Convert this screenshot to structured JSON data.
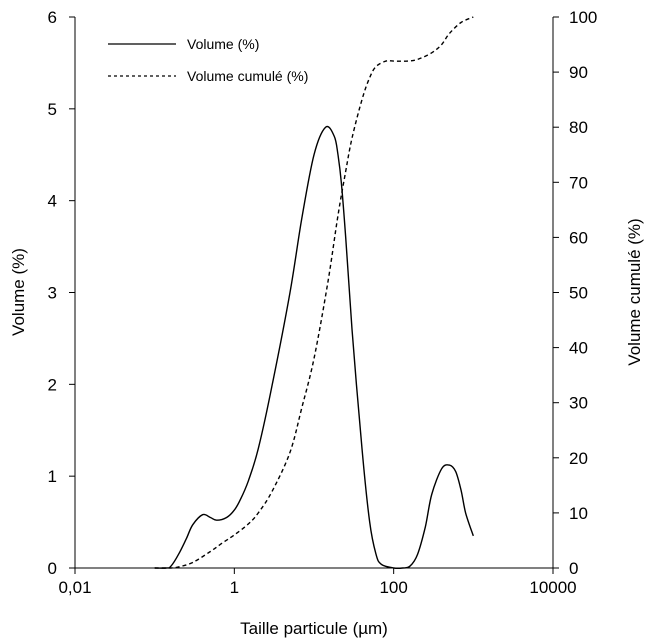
{
  "chart_data": {
    "type": "line",
    "xlabel": "Taille particule (µm)",
    "ylabel_left": "Volume (%)",
    "ylabel_right": "Volume cumulé (%)",
    "x_scale": "log",
    "xlim": [
      0.01,
      10000
    ],
    "ylim_left": [
      0,
      6
    ],
    "ylim_right": [
      0,
      100
    ],
    "x_ticks": [
      {
        "value": 0.01,
        "label": "0,01"
      },
      {
        "value": 1,
        "label": "1"
      },
      {
        "value": 100,
        "label": "100"
      },
      {
        "value": 10000,
        "label": "10000"
      }
    ],
    "y_left_ticks": [
      {
        "value": 0,
        "label": "0"
      },
      {
        "value": 1,
        "label": "1"
      },
      {
        "value": 2,
        "label": "2"
      },
      {
        "value": 3,
        "label": "3"
      },
      {
        "value": 4,
        "label": "4"
      },
      {
        "value": 5,
        "label": "5"
      },
      {
        "value": 6,
        "label": "6"
      }
    ],
    "y_right_ticks": [
      {
        "value": 0,
        "label": "0"
      },
      {
        "value": 10,
        "label": "10"
      },
      {
        "value": 20,
        "label": "20"
      },
      {
        "value": 30,
        "label": "30"
      },
      {
        "value": 40,
        "label": "40"
      },
      {
        "value": 50,
        "label": "50"
      },
      {
        "value": 60,
        "label": "60"
      },
      {
        "value": 70,
        "label": "70"
      },
      {
        "value": 80,
        "label": "80"
      },
      {
        "value": 90,
        "label": "90"
      },
      {
        "value": 100,
        "label": "100"
      }
    ],
    "grid": false,
    "legend_position": "top-left",
    "series": [
      {
        "name": "Volume (%)",
        "axis": "left",
        "style": "solid",
        "color": "#000000",
        "x": [
          0.1,
          0.14,
          0.16,
          0.2,
          0.25,
          0.3,
          0.4,
          0.5,
          0.6,
          0.8,
          1.0,
          1.2,
          1.5,
          2,
          3,
          5,
          7,
          10,
          14,
          18,
          20,
          22,
          25,
          30,
          40,
          50,
          60,
          70,
          100,
          130,
          160,
          200,
          250,
          300,
          400,
          500,
          600,
          700,
          800,
          1000
        ],
        "y": [
          0,
          0,
          0.02,
          0.15,
          0.32,
          0.47,
          0.58,
          0.55,
          0.52,
          0.55,
          0.63,
          0.75,
          0.95,
          1.3,
          2.0,
          3.0,
          3.8,
          4.5,
          4.8,
          4.7,
          4.5,
          4.2,
          3.6,
          2.6,
          1.3,
          0.5,
          0.15,
          0.04,
          0.0,
          0.0,
          0.02,
          0.15,
          0.45,
          0.8,
          1.08,
          1.12,
          1.05,
          0.85,
          0.6,
          0.35
        ]
      },
      {
        "name": "Volume cumulé (%)",
        "axis": "right",
        "style": "dashed",
        "color": "#000000",
        "x": [
          0.1,
          0.14,
          0.16,
          0.2,
          0.3,
          0.5,
          0.7,
          1.0,
          1.5,
          2,
          3,
          5,
          7,
          10,
          15,
          20,
          25,
          30,
          40,
          50,
          60,
          80,
          100,
          150,
          200,
          300,
          400,
          500,
          700,
          1000
        ],
        "y": [
          0,
          0,
          0,
          0.2,
          1.0,
          3.0,
          4.5,
          6.0,
          8.0,
          10.0,
          14.0,
          21.0,
          29.0,
          38.0,
          52.0,
          64.0,
          72.0,
          78.0,
          85.0,
          89.0,
          91.0,
          92.0,
          92.0,
          92.0,
          92.3,
          93.5,
          95.0,
          97.0,
          99.0,
          100.0
        ]
      }
    ]
  }
}
